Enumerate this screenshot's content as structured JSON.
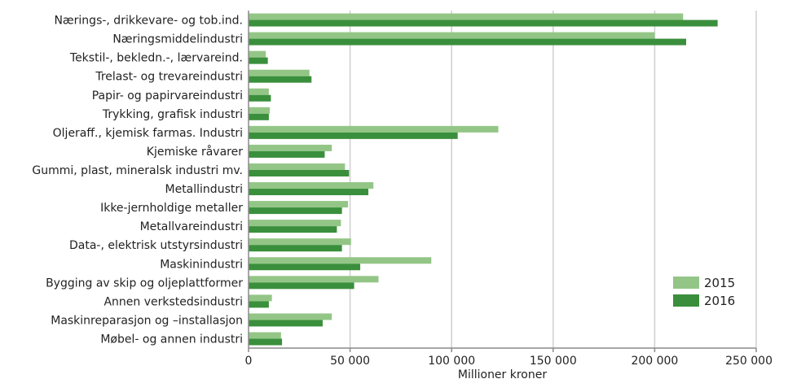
{
  "chart_data": {
    "type": "bar",
    "orientation": "horizontal",
    "title": "",
    "xlabel": "Millioner kroner",
    "ylabel": "",
    "xlim": [
      0,
      250000
    ],
    "xticks": [
      0,
      50000,
      100000,
      150000,
      200000,
      250000
    ],
    "xtick_labels": [
      "0",
      "50 000",
      "100 000",
      "150 000",
      "200 000",
      "250 000"
    ],
    "grid": "vertical",
    "legend_position": "bottom-right",
    "categories": [
      "Nærings-, drikkevare- og tob.ind.",
      "Næringsmiddelindustri",
      "Tekstil-, bekledn.-, lærvareind.",
      "Trelast- og trevareindustri",
      "Papir- og papirvareindustri",
      "Trykking, grafisk industri",
      "Oljeraff., kjemisk farmas. Industri",
      "Kjemiske råvarer",
      "Gummi, plast, mineralsk industri mv.",
      "Metallindustri",
      "Ikke-jernholdige metaller",
      "Metallvareindustri",
      "Data-, elektrisk utstyrsindustri",
      "Maskinindustri",
      "Bygging av skip og oljeplattformer",
      "Annen verkstedsindustri",
      "Maskinreparasjon og –installasjon",
      "Møbel- og annen industri"
    ],
    "series": [
      {
        "name": "2015",
        "color": "#93c686",
        "values": [
          214000,
          200000,
          8500,
          30000,
          10000,
          10500,
          123000,
          41000,
          47500,
          61500,
          49000,
          45500,
          50500,
          90000,
          64000,
          11500,
          41000,
          16000
        ]
      },
      {
        "name": "2016",
        "color": "#3a8f3c",
        "values": [
          231000,
          215500,
          9500,
          31000,
          11000,
          10000,
          103000,
          37500,
          49500,
          59000,
          46000,
          43500,
          46000,
          55000,
          52000,
          10000,
          36500,
          16500
        ]
      }
    ]
  }
}
